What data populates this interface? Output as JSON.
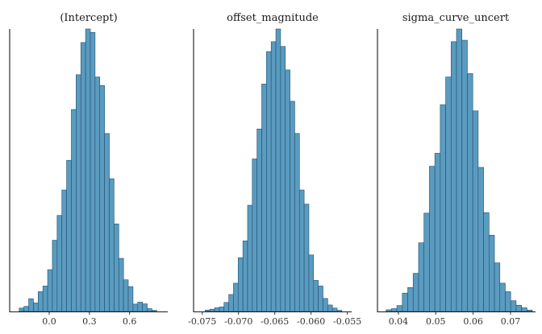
{
  "style": {
    "bar_fill": "#5a9bbf",
    "bar_stroke": "#1f4f70"
  },
  "chart_data": [
    {
      "type": "bar",
      "title": "(Intercept)",
      "xlim": [
        -0.295,
        0.885
      ],
      "ylim": [
        0,
        1
      ],
      "bin_width": 0.0354,
      "bins": [
        {
          "x0": -0.224,
          "h": 0.012
        },
        {
          "x0": -0.1886,
          "h": 0.018
        },
        {
          "x0": -0.1532,
          "h": 0.045
        },
        {
          "x0": -0.1178,
          "h": 0.03
        },
        {
          "x0": -0.0824,
          "h": 0.07
        },
        {
          "x0": -0.047,
          "h": 0.09
        },
        {
          "x0": -0.0116,
          "h": 0.148
        },
        {
          "x0": 0.0238,
          "h": 0.252
        },
        {
          "x0": 0.0592,
          "h": 0.34
        },
        {
          "x0": 0.0946,
          "h": 0.43
        },
        {
          "x0": 0.13,
          "h": 0.535
        },
        {
          "x0": 0.1654,
          "h": 0.715
        },
        {
          "x0": 0.2008,
          "h": 0.838
        },
        {
          "x0": 0.2362,
          "h": 0.952
        },
        {
          "x0": 0.2716,
          "h": 1.0
        },
        {
          "x0": 0.307,
          "h": 0.988
        },
        {
          "x0": 0.3424,
          "h": 0.83
        },
        {
          "x0": 0.3778,
          "h": 0.8
        },
        {
          "x0": 0.4132,
          "h": 0.63
        },
        {
          "x0": 0.4486,
          "h": 0.47
        },
        {
          "x0": 0.484,
          "h": 0.31
        },
        {
          "x0": 0.5194,
          "h": 0.188
        },
        {
          "x0": 0.5548,
          "h": 0.112
        },
        {
          "x0": 0.5902,
          "h": 0.088
        },
        {
          "x0": 0.6256,
          "h": 0.026
        },
        {
          "x0": 0.661,
          "h": 0.033
        },
        {
          "x0": 0.6964,
          "h": 0.027
        },
        {
          "x0": 0.7318,
          "h": 0.01
        },
        {
          "x0": 0.7672,
          "h": 0.004
        }
      ],
      "x_ticks": [
        0.0,
        0.3,
        0.6
      ],
      "x_tick_labels": [
        "0.0",
        "0.3",
        "0.6"
      ]
    },
    {
      "type": "bar",
      "title": "offset_magnitude",
      "xlim": [
        -0.0762,
        -0.0544
      ],
      "ylim": [
        0,
        1
      ],
      "bin_width": 0.00065,
      "bins": [
        {
          "x0": -0.0746,
          "h": 0.005
        },
        {
          "x0": -0.07395,
          "h": 0.008
        },
        {
          "x0": -0.0733,
          "h": 0.013
        },
        {
          "x0": -0.07265,
          "h": 0.016
        },
        {
          "x0": -0.072,
          "h": 0.032
        },
        {
          "x0": -0.07135,
          "h": 0.06
        },
        {
          "x0": -0.0707,
          "h": 0.1
        },
        {
          "x0": -0.07005,
          "h": 0.19
        },
        {
          "x0": -0.0694,
          "h": 0.25
        },
        {
          "x0": -0.06875,
          "h": 0.376
        },
        {
          "x0": -0.0681,
          "h": 0.54
        },
        {
          "x0": -0.06745,
          "h": 0.646
        },
        {
          "x0": -0.0668,
          "h": 0.805
        },
        {
          "x0": -0.06615,
          "h": 0.92
        },
        {
          "x0": -0.0655,
          "h": 0.955
        },
        {
          "x0": -0.06485,
          "h": 1.0
        },
        {
          "x0": -0.0642,
          "h": 0.938
        },
        {
          "x0": -0.06355,
          "h": 0.855
        },
        {
          "x0": -0.0629,
          "h": 0.744
        },
        {
          "x0": -0.06225,
          "h": 0.63
        },
        {
          "x0": -0.0616,
          "h": 0.43
        },
        {
          "x0": -0.06095,
          "h": 0.38
        },
        {
          "x0": -0.0603,
          "h": 0.2
        },
        {
          "x0": -0.05965,
          "h": 0.11
        },
        {
          "x0": -0.059,
          "h": 0.09
        },
        {
          "x0": -0.05835,
          "h": 0.046
        },
        {
          "x0": -0.0577,
          "h": 0.023
        },
        {
          "x0": -0.05705,
          "h": 0.012
        },
        {
          "x0": -0.0564,
          "h": 0.004
        }
      ],
      "x_ticks": [
        -0.075,
        -0.07,
        -0.065,
        -0.06,
        -0.055
      ],
      "x_tick_labels": [
        "-0.075",
        "-0.070",
        "-0.065",
        "-0.060",
        "-0.055"
      ]
    },
    {
      "type": "bar",
      "title": "sigma_curve_uncert",
      "xlim": [
        0.0344,
        0.0767
      ],
      "ylim": [
        0,
        1
      ],
      "bin_width": 0.00145,
      "bins": [
        {
          "x0": 0.0367,
          "h": 0.006
        },
        {
          "x0": 0.03815,
          "h": 0.01
        },
        {
          "x0": 0.0396,
          "h": 0.021
        },
        {
          "x0": 0.04105,
          "h": 0.065
        },
        {
          "x0": 0.0425,
          "h": 0.085
        },
        {
          "x0": 0.04395,
          "h": 0.135
        },
        {
          "x0": 0.0454,
          "h": 0.243
        },
        {
          "x0": 0.04685,
          "h": 0.348
        },
        {
          "x0": 0.0483,
          "h": 0.514
        },
        {
          "x0": 0.04975,
          "h": 0.56
        },
        {
          "x0": 0.0512,
          "h": 0.732
        },
        {
          "x0": 0.05265,
          "h": 0.83
        },
        {
          "x0": 0.0541,
          "h": 0.955
        },
        {
          "x0": 0.05555,
          "h": 1.0
        },
        {
          "x0": 0.057,
          "h": 0.96
        },
        {
          "x0": 0.05845,
          "h": 0.842
        },
        {
          "x0": 0.0599,
          "h": 0.71
        },
        {
          "x0": 0.06135,
          "h": 0.51
        },
        {
          "x0": 0.0628,
          "h": 0.35
        },
        {
          "x0": 0.06425,
          "h": 0.27
        },
        {
          "x0": 0.0657,
          "h": 0.172
        },
        {
          "x0": 0.06715,
          "h": 0.1
        },
        {
          "x0": 0.0686,
          "h": 0.07
        },
        {
          "x0": 0.07005,
          "h": 0.038
        },
        {
          "x0": 0.0715,
          "h": 0.022
        },
        {
          "x0": 0.07295,
          "h": 0.013
        },
        {
          "x0": 0.0744,
          "h": 0.005
        }
      ],
      "x_ticks": [
        0.04,
        0.05,
        0.06,
        0.07
      ],
      "x_tick_labels": [
        "0.04",
        "0.05",
        "0.06",
        "0.07"
      ]
    }
  ]
}
